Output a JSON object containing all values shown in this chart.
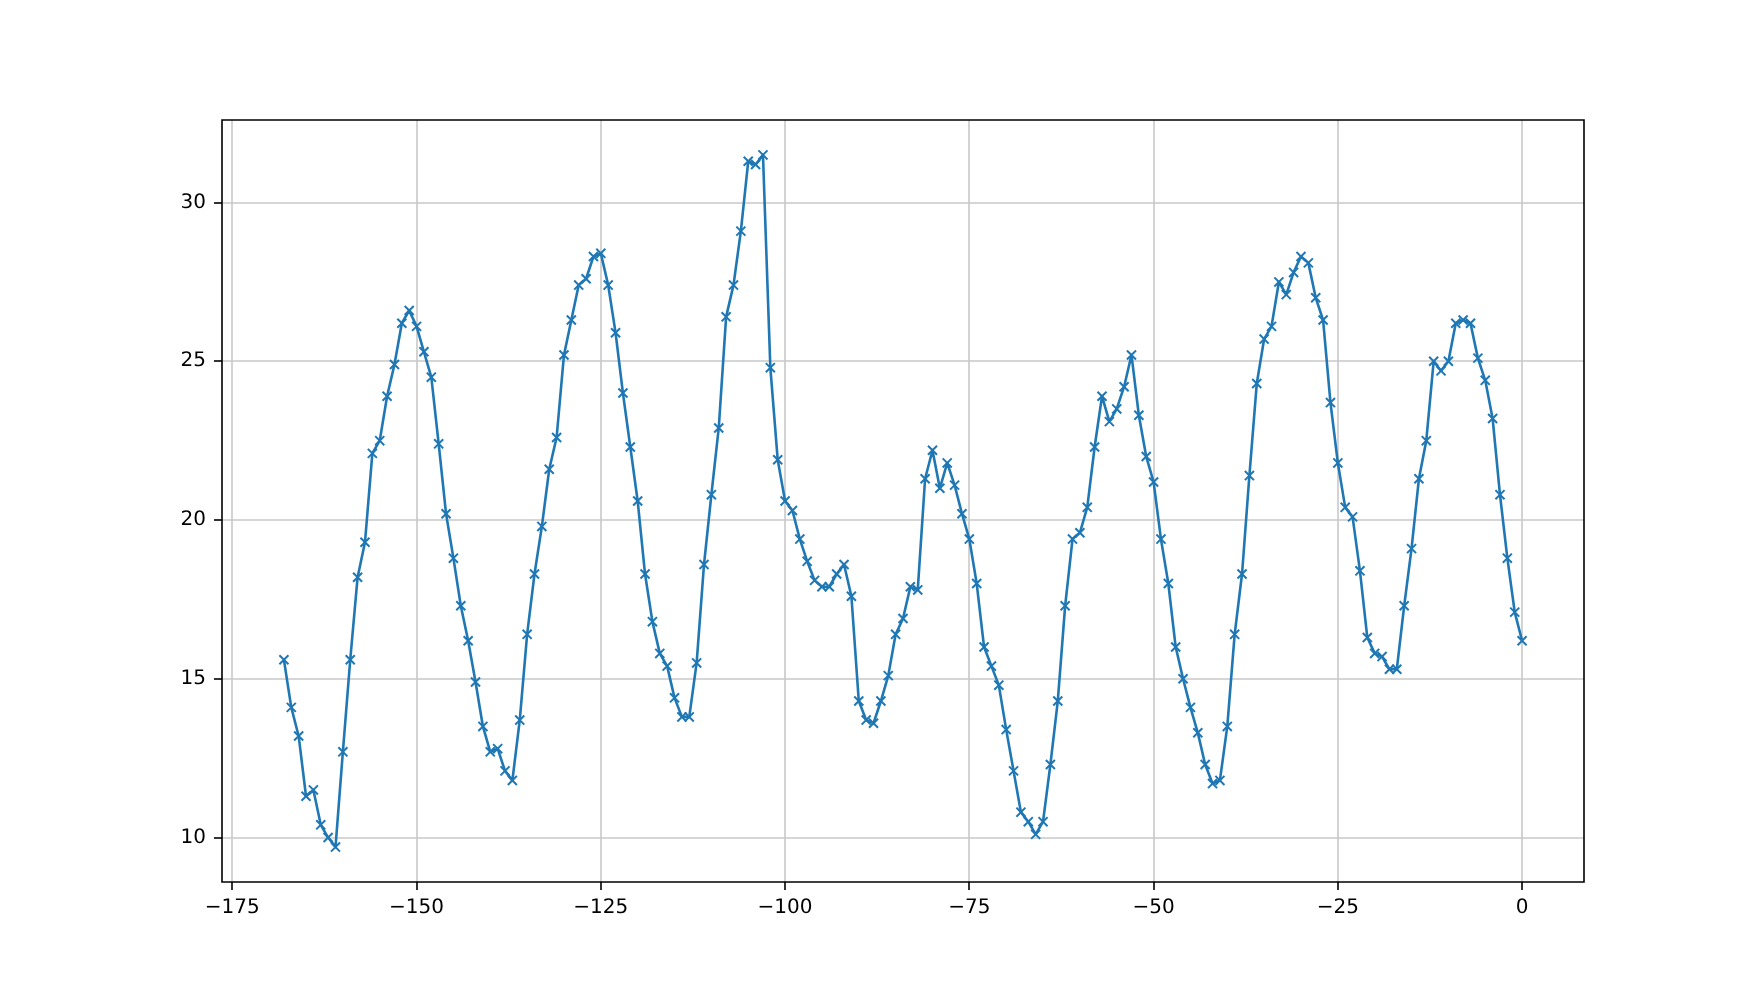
{
  "chart_data": {
    "type": "line",
    "marker": "cross",
    "color": "#1f77b4",
    "grid": true,
    "xlim": [
      -176.4,
      8.4
    ],
    "ylim": [
      8.6,
      32.6
    ],
    "xticks": [
      {
        "value": -175,
        "label": "−175"
      },
      {
        "value": -150,
        "label": "−150"
      },
      {
        "value": -125,
        "label": "−125"
      },
      {
        "value": -100,
        "label": "−100"
      },
      {
        "value": -75,
        "label": "−75"
      },
      {
        "value": -50,
        "label": "−50"
      },
      {
        "value": -25,
        "label": "−25"
      },
      0
    ],
    "yticks": [
      10,
      15,
      20,
      25,
      30
    ],
    "x": [
      -168,
      -167,
      -166,
      -165,
      -164,
      -163,
      -162,
      -161,
      -160,
      -159,
      -158,
      -157,
      -156,
      -155,
      -154,
      -153,
      -152,
      -151,
      -150,
      -149,
      -148,
      -147,
      -146,
      -145,
      -144,
      -143,
      -142,
      -141,
      -140,
      -139,
      -138,
      -137,
      -136,
      -135,
      -134,
      -133,
      -132,
      -131,
      -130,
      -129,
      -128,
      -127,
      -126,
      -125,
      -124,
      -123,
      -122,
      -121,
      -120,
      -119,
      -118,
      -117,
      -116,
      -115,
      -114,
      -113,
      -112,
      -111,
      -110,
      -109,
      -108,
      -107,
      -106,
      -105,
      -104,
      -103,
      -102,
      -101,
      -100,
      -99,
      -98,
      -97,
      -96,
      -95,
      -94,
      -93,
      -92,
      -91,
      -90,
      -89,
      -88,
      -87,
      -86,
      -85,
      -84,
      -83,
      -82,
      -81,
      -80,
      -79,
      -78,
      -77,
      -76,
      -75,
      -74,
      -73,
      -72,
      -71,
      -70,
      -69,
      -68,
      -67,
      -66,
      -65,
      -64,
      -63,
      -62,
      -61,
      -60,
      -59,
      -58,
      -57,
      -56,
      -55,
      -54,
      -53,
      -52,
      -51,
      -50,
      -49,
      -48,
      -47,
      -46,
      -45,
      -44,
      -43,
      -42,
      -41,
      -40,
      -39,
      -38,
      -37,
      -36,
      -35,
      -34,
      -33,
      -32,
      -31,
      -30,
      -29,
      -28,
      -27,
      -26,
      -25,
      -24,
      -23,
      -22,
      -21,
      -20,
      -19,
      -18,
      -17,
      -16,
      -15,
      -14,
      -13,
      -12,
      -11,
      -10,
      -9,
      -8,
      -7,
      -6,
      -5,
      -4,
      -3,
      -2,
      -1,
      0
    ],
    "values": [
      15.6,
      14.1,
      13.2,
      11.3,
      11.5,
      10.4,
      10.0,
      9.7,
      12.7,
      15.6,
      18.2,
      19.3,
      22.1,
      22.5,
      23.9,
      24.9,
      26.2,
      26.6,
      26.1,
      25.3,
      24.5,
      22.4,
      20.2,
      18.8,
      17.3,
      16.2,
      14.9,
      13.5,
      12.7,
      12.8,
      12.1,
      11.8,
      13.7,
      16.4,
      18.3,
      19.8,
      21.6,
      22.6,
      25.2,
      26.3,
      27.4,
      27.6,
      28.3,
      28.4,
      27.4,
      25.9,
      24.0,
      22.3,
      20.6,
      18.3,
      16.8,
      15.8,
      15.4,
      14.4,
      13.8,
      13.8,
      15.5,
      18.6,
      20.8,
      22.9,
      26.4,
      27.4,
      29.1,
      31.3,
      31.2,
      31.5,
      24.8,
      21.9,
      20.6,
      20.3,
      19.4,
      18.7,
      18.1,
      17.9,
      17.9,
      18.3,
      18.6,
      17.6,
      14.3,
      13.7,
      13.6,
      14.3,
      15.1,
      16.4,
      16.9,
      17.9,
      17.8,
      21.3,
      22.2,
      21.0,
      21.8,
      21.1,
      20.2,
      19.4,
      18.0,
      16.0,
      15.4,
      14.8,
      13.4,
      12.1,
      10.8,
      10.5,
      10.1,
      10.5,
      12.3,
      14.3,
      17.3,
      19.4,
      19.6,
      20.4,
      22.3,
      23.9,
      23.1,
      23.5,
      24.2,
      25.2,
      23.3,
      22.0,
      21.2,
      19.4,
      18.0,
      16.0,
      15.0,
      14.1,
      13.3,
      12.3,
      11.7,
      11.8,
      13.5,
      16.4,
      18.3,
      21.4,
      24.3,
      25.7,
      26.1,
      27.5,
      27.1,
      27.8,
      28.3,
      28.1,
      27.0,
      26.3,
      23.7,
      21.8,
      20.4,
      20.1,
      18.4,
      16.3,
      15.8,
      15.7,
      15.3,
      15.3,
      17.3,
      19.1,
      21.3,
      22.5,
      25.0,
      24.7,
      25.0,
      26.2,
      26.3,
      26.2,
      25.1,
      24.4,
      23.2,
      20.8,
      18.8,
      17.1,
      16.2
    ]
  }
}
